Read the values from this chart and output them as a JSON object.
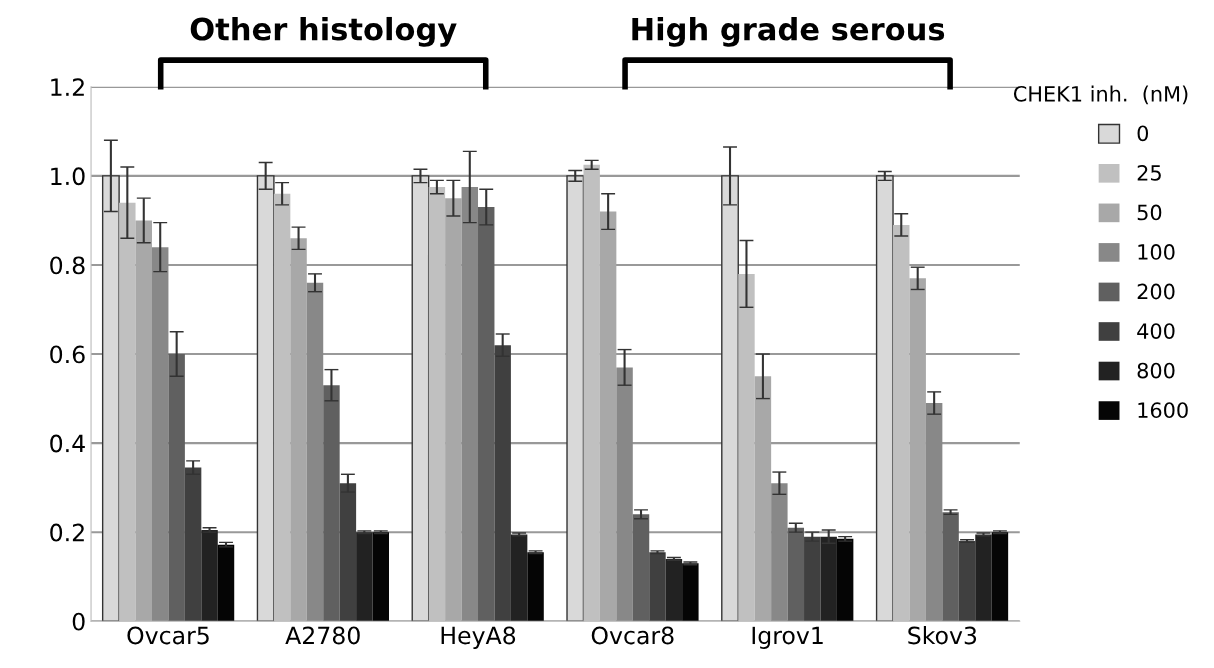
{
  "chart_data": {
    "type": "bar",
    "categories": [
      "Ovcar5",
      "A2780",
      "HeyA8",
      "Ovcar8",
      "Igrov1",
      "Skov3"
    ],
    "legend_title": "CHEK1 inh.  (nM)",
    "legend": "right",
    "grid": "y",
    "ylim": [
      0,
      1.2
    ],
    "yticks": [
      0,
      {
        "value": 0.2,
        "label": "0.2"
      },
      {
        "value": 0.4,
        "label": "0.4"
      },
      {
        "value": 0.6,
        "label": "0.6"
      },
      {
        "value": 0.8,
        "label": "0.8"
      },
      {
        "value": 1.0,
        "label": "1.0"
      },
      {
        "value": 1.2,
        "label": "1.2"
      }
    ],
    "annotations": [
      "Other histology",
      "High grade serous"
    ],
    "series": [
      {
        "name": "0",
        "color": "#d9d9d9",
        "values": [
          1.0,
          1.0,
          1.0,
          1.0,
          1.0,
          1.0
        ],
        "errors": [
          0.08,
          0.03,
          0.015,
          0.012,
          0.065,
          0.01
        ]
      },
      {
        "name": "25",
        "color": "#c0c0c0",
        "values": [
          0.94,
          0.96,
          0.975,
          1.025,
          0.78,
          0.89
        ],
        "errors": [
          0.08,
          0.025,
          0.015,
          0.01,
          0.075,
          0.025
        ]
      },
      {
        "name": "50",
        "color": "#a8a8a8",
        "values": [
          0.9,
          0.86,
          0.95,
          0.92,
          0.55,
          0.77
        ],
        "errors": [
          0.05,
          0.025,
          0.04,
          0.04,
          0.05,
          0.025
        ]
      },
      {
        "name": "100",
        "color": "#888888",
        "values": [
          0.84,
          0.76,
          0.975,
          0.57,
          0.31,
          0.49
        ],
        "errors": [
          0.055,
          0.02,
          0.08,
          0.04,
          0.025,
          0.025
        ]
      },
      {
        "name": "200",
        "color": "#606060",
        "values": [
          0.6,
          0.53,
          0.93,
          0.24,
          0.21,
          0.245
        ],
        "errors": [
          0.05,
          0.035,
          0.04,
          0.01,
          0.01,
          0.005
        ]
      },
      {
        "name": "400",
        "color": "#404040",
        "values": [
          0.345,
          0.31,
          0.62,
          0.155,
          0.19,
          0.18
        ],
        "errors": [
          0.015,
          0.02,
          0.025,
          0.003,
          0.01,
          0.003
        ]
      },
      {
        "name": "800",
        "color": "#222222",
        "values": [
          0.205,
          0.2,
          0.195,
          0.14,
          0.19,
          0.195
        ],
        "errors": [
          0.005,
          0.003,
          0.003,
          0.003,
          0.015,
          0.003
        ]
      },
      {
        "name": "1600",
        "color": "#050505",
        "values": [
          0.172,
          0.2,
          0.155,
          0.13,
          0.185,
          0.2
        ],
        "errors": [
          0.005,
          0.003,
          0.003,
          0.003,
          0.005,
          0.003
        ]
      }
    ]
  }
}
